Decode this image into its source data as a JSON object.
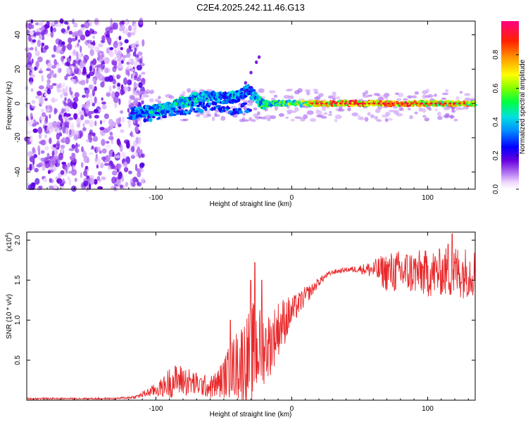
{
  "title": "C2E4.2025.242.11.46.G13",
  "chart_data": [
    {
      "type": "heatmap",
      "name": "spectrogram",
      "xlabel": "Height of straight line (km)",
      "ylabel": "Frequency (Hz)",
      "xlim": [
        -195,
        135
      ],
      "ylim": [
        -50,
        48
      ],
      "xticks": [
        -100,
        0,
        100
      ],
      "yticks": [
        -40,
        -20,
        0,
        20,
        40
      ],
      "xtick_labels": [
        "-100",
        "0",
        "100"
      ],
      "ytick_labels": [
        "-40",
        "-20",
        "0",
        "20",
        "40"
      ],
      "colorbar": {
        "label": "Normalized spectral amplitude",
        "range": [
          0,
          1
        ],
        "ticks": [
          0.0,
          0.2,
          0.4,
          0.6,
          0.8
        ],
        "tick_labels": [
          "0.0",
          "0.2",
          "0.4",
          "0.6",
          "0.8"
        ]
      },
      "features": {
        "noise_region_x": [
          -195,
          -115
        ],
        "track_points": [
          {
            "x": -118,
            "f": -6,
            "a": 0.35
          },
          {
            "x": -110,
            "f": -5,
            "a": 0.4
          },
          {
            "x": -100,
            "f": -4,
            "a": 0.45
          },
          {
            "x": -90,
            "f": -2,
            "a": 0.45
          },
          {
            "x": -80,
            "f": 1,
            "a": 0.5
          },
          {
            "x": -70,
            "f": 3,
            "a": 0.45
          },
          {
            "x": -60,
            "f": 4,
            "a": 0.4
          },
          {
            "x": -50,
            "f": 3,
            "a": 0.4
          },
          {
            "x": -40,
            "f": 4,
            "a": 0.4
          },
          {
            "x": -32,
            "f": 8,
            "a": 0.35
          },
          {
            "x": -22,
            "f": 0,
            "a": 0.5
          },
          {
            "x": -10,
            "f": 0,
            "a": 0.55
          },
          {
            "x": 0,
            "f": 0,
            "a": 0.6
          },
          {
            "x": 20,
            "f": 0,
            "a": 0.75
          },
          {
            "x": 40,
            "f": 0,
            "a": 0.85
          },
          {
            "x": 60,
            "f": 0,
            "a": 0.9
          },
          {
            "x": 80,
            "f": 0,
            "a": 0.85
          },
          {
            "x": 100,
            "f": 0,
            "a": 0.85
          },
          {
            "x": 120,
            "f": 0,
            "a": 0.8
          },
          {
            "x": 135,
            "f": 0,
            "a": 0.75
          }
        ],
        "secondary_track_points": [
          {
            "x": -120,
            "f": -8,
            "a": 0.3
          },
          {
            "x": -100,
            "f": -7,
            "a": 0.35
          },
          {
            "x": -80,
            "f": -4,
            "a": 0.35
          },
          {
            "x": -60,
            "f": -2,
            "a": 0.35
          },
          {
            "x": -45,
            "f": -4,
            "a": 0.3
          },
          {
            "x": -30,
            "f": -2,
            "a": 0.3
          }
        ],
        "spur_points": [
          {
            "x": -34,
            "f": 12
          },
          {
            "x": -30,
            "f": 18
          },
          {
            "x": -26,
            "f": 24
          },
          {
            "x": -24,
            "f": 27
          }
        ]
      }
    },
    {
      "type": "line",
      "name": "snr",
      "xlabel": "Height of straight line (km)",
      "ylabel": "SNR (10 * v/v)",
      "scale_label": "(x10",
      "scale_exponent": "4",
      "scale_close": ")",
      "xlim": [
        -195,
        135
      ],
      "ylim": [
        0,
        2.1
      ],
      "xticks": [
        -100,
        0,
        100
      ],
      "yticks": [
        0.5,
        1.0,
        1.5,
        2.0
      ],
      "xtick_labels": [
        "-100",
        "0",
        "100"
      ],
      "ytick_labels": [
        "0.5",
        "1.0",
        "1.5",
        "2.0"
      ],
      "color": "#e8282a",
      "envelope": {
        "x": [
          -195,
          -130,
          -115,
          -105,
          -95,
          -90,
          -85,
          -80,
          -75,
          -70,
          -65,
          -60,
          -55,
          -50,
          -45,
          -40,
          -35,
          -30,
          -27,
          -25,
          -20,
          -15,
          -10,
          -5,
          0,
          5,
          10,
          15,
          20,
          25,
          30,
          40,
          50,
          60,
          70,
          80,
          90,
          100,
          110,
          120,
          135
        ],
        "mean": [
          0.02,
          0.02,
          0.04,
          0.1,
          0.16,
          0.22,
          0.25,
          0.25,
          0.22,
          0.2,
          0.18,
          0.16,
          0.2,
          0.28,
          0.38,
          0.45,
          0.5,
          0.55,
          0.6,
          0.65,
          0.65,
          0.72,
          0.9,
          1.0,
          1.1,
          1.2,
          1.3,
          1.38,
          1.48,
          1.55,
          1.6,
          1.63,
          1.64,
          1.63,
          1.6,
          1.6,
          1.6,
          1.58,
          1.6,
          1.6,
          1.6
        ],
        "spread": [
          0.01,
          0.01,
          0.02,
          0.06,
          0.12,
          0.2,
          0.2,
          0.2,
          0.18,
          0.15,
          0.14,
          0.14,
          0.18,
          0.25,
          0.35,
          0.45,
          0.55,
          0.6,
          0.7,
          0.55,
          0.45,
          0.4,
          0.35,
          0.3,
          0.2,
          0.15,
          0.12,
          0.08,
          0.06,
          0.04,
          0.03,
          0.03,
          0.05,
          0.12,
          0.25,
          0.28,
          0.28,
          0.3,
          0.3,
          0.35,
          0.3
        ]
      },
      "peaks": [
        {
          "x": -45,
          "y": 1.0
        },
        {
          "x": -30,
          "y": 1.5
        },
        {
          "x": -27,
          "y": 1.72
        },
        {
          "x": -22,
          "y": 1.5
        },
        {
          "x": 115,
          "y": 1.95
        },
        {
          "x": 118,
          "y": 2.08
        }
      ]
    }
  ]
}
